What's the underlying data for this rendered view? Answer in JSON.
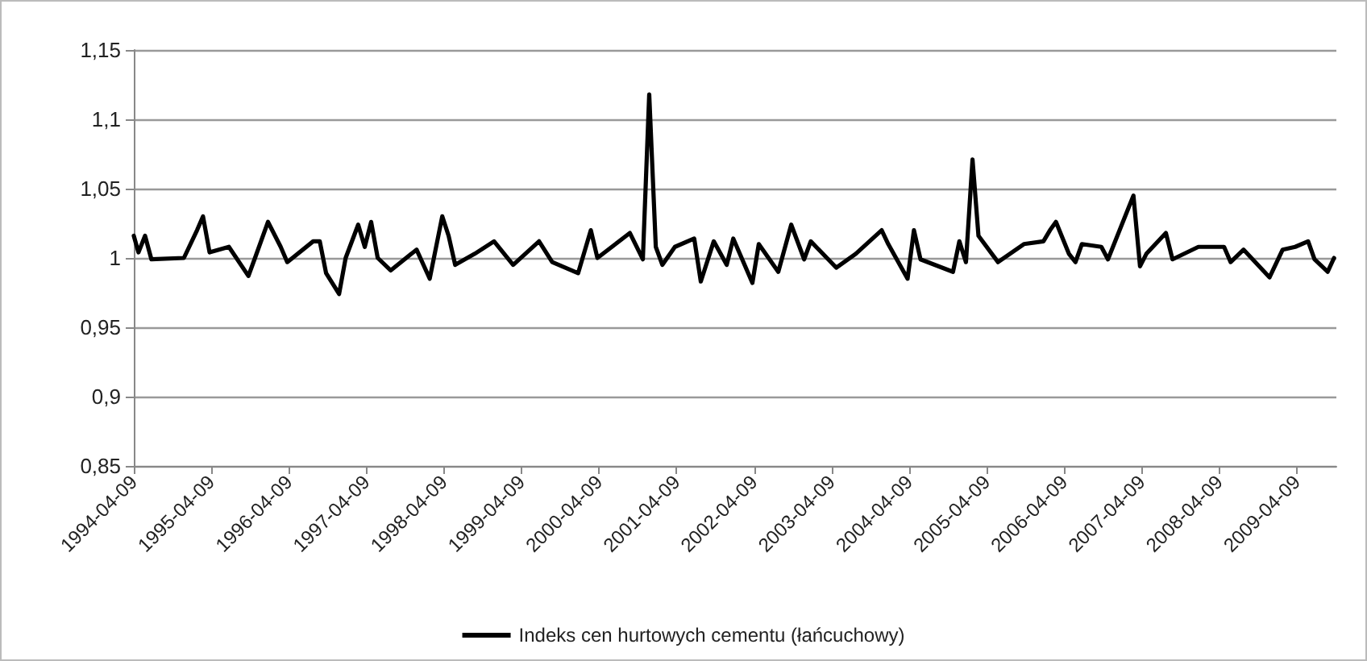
{
  "chart_data": {
    "type": "line",
    "x": [
      "1994-04-09",
      "1994-05",
      "1994-06",
      "1994-07",
      "1994-12",
      "1995-02",
      "1995-03",
      "1995-04",
      "1995-07",
      "1995-10",
      "1995-11",
      "1996-01",
      "1996-03",
      "1996-04",
      "1996-08",
      "1996-09",
      "1996-10",
      "1996-12",
      "1997-01",
      "1997-03",
      "1997-04",
      "1997-05",
      "1997-06",
      "1997-08",
      "1997-12",
      "1998-02",
      "1998-04",
      "1998-05",
      "1998-06",
      "1998-09",
      "1998-12",
      "1999-03",
      "1999-07",
      "1999-09",
      "2000-01",
      "2000-03",
      "2000-04",
      "2000-09",
      "2000-11",
      "2000-12",
      "2001-01",
      "2001-02",
      "2001-04",
      "2001-07",
      "2001-08",
      "2001-10",
      "2001-12",
      "2002-01",
      "2002-04",
      "2002-05",
      "2002-08",
      "2002-10",
      "2002-12",
      "2003-01",
      "2003-05",
      "2003-08",
      "2003-12",
      "2004-01",
      "2004-04",
      "2004-05",
      "2004-06",
      "2004-11",
      "2004-12",
      "2005-01",
      "2005-02",
      "2005-03",
      "2005-06",
      "2005-10",
      "2006-01",
      "2006-02",
      "2006-03",
      "2006-05",
      "2006-06",
      "2006-07",
      "2006-10",
      "2006-11",
      "2007-03",
      "2007-04",
      "2007-05",
      "2007-08",
      "2007-09",
      "2008-01",
      "2008-05",
      "2008-06",
      "2008-08",
      "2008-12",
      "2009-02",
      "2009-04",
      "2009-06",
      "2009-07",
      "2009-09",
      "2009-10"
    ],
    "series": [
      {
        "name": "Indeks cen hurtowych cementu (łańcuchowy)",
        "color": "#000000",
        "values": [
          1.016,
          1.004,
          1.016,
          0.999,
          1.0,
          1.02,
          1.03,
          1.004,
          1.008,
          0.987,
          1.0,
          1.026,
          1.008,
          0.997,
          1.012,
          1.012,
          0.989,
          0.974,
          1.0,
          1.024,
          1.008,
          1.026,
          1.0,
          0.991,
          1.006,
          0.985,
          1.03,
          1.016,
          0.995,
          1.003,
          1.012,
          0.995,
          1.012,
          0.997,
          0.989,
          1.02,
          1.0,
          1.018,
          0.999,
          1.118,
          1.008,
          0.995,
          1.008,
          1.014,
          0.983,
          1.012,
          0.995,
          1.014,
          0.982,
          1.01,
          0.99,
          1.024,
          0.999,
          1.012,
          0.993,
          1.003,
          1.02,
          1.01,
          0.985,
          1.02,
          0.999,
          0.99,
          1.012,
          0.997,
          1.071,
          1.016,
          0.997,
          1.01,
          1.012,
          1.02,
          1.026,
          1.003,
          0.997,
          1.01,
          1.008,
          0.999,
          1.045,
          0.994,
          1.003,
          1.018,
          0.999,
          1.008,
          1.008,
          0.997,
          1.006,
          0.986,
          1.006,
          1.008,
          1.012,
          0.999,
          0.99,
          1.0
        ]
      }
    ],
    "xlim": [
      "1994-04-09",
      "2009-10-12"
    ],
    "xticks": [
      "1994-04-09",
      "1995-04-09",
      "1996-04-09",
      "1997-04-09",
      "1998-04-09",
      "1999-04-09",
      "2000-04-09",
      "2001-04-09",
      "2002-04-09",
      "2003-04-09",
      "2004-04-09",
      "2005-04-09",
      "2006-04-09",
      "2007-04-09",
      "2008-04-09",
      "2009-04-09"
    ],
    "ylim": [
      0.85,
      1.15
    ],
    "yticks": [
      {
        "value": 0.85,
        "label": "0,85"
      },
      {
        "value": 0.9,
        "label": "0,9"
      },
      {
        "value": 0.95,
        "label": "0,95"
      },
      1,
      {
        "value": 1.05,
        "label": "1,05"
      },
      {
        "value": 1.1,
        "label": "1,1"
      },
      {
        "value": 1.15,
        "label": "1,15"
      }
    ],
    "grid": "y",
    "legend": "bottom",
    "marker": "none",
    "line_style": "solid"
  }
}
